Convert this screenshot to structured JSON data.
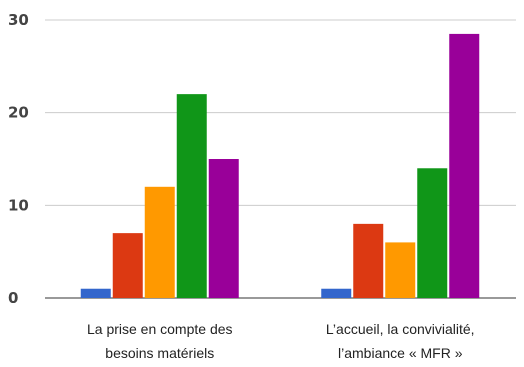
{
  "chart_data": {
    "type": "bar",
    "categories": [
      [
        "La prise en compte des",
        "besoins matériels"
      ],
      [
        "L’accueil, la convivialité,",
        "l’ambiance « MFR »"
      ]
    ],
    "series": [
      {
        "values": [
          1,
          1
        ],
        "color": "#3366cc"
      },
      {
        "values": [
          7,
          8
        ],
        "color": "#dc3912"
      },
      {
        "values": [
          12,
          6
        ],
        "color": "#ff9900"
      },
      {
        "values": [
          22,
          14
        ],
        "color": "#109618"
      },
      {
        "values": [
          15,
          28.5
        ],
        "color": "#990099"
      }
    ],
    "yticks": [
      0,
      10,
      20,
      30
    ],
    "ylim": [
      0,
      30
    ],
    "grid": true,
    "legend": "none"
  }
}
